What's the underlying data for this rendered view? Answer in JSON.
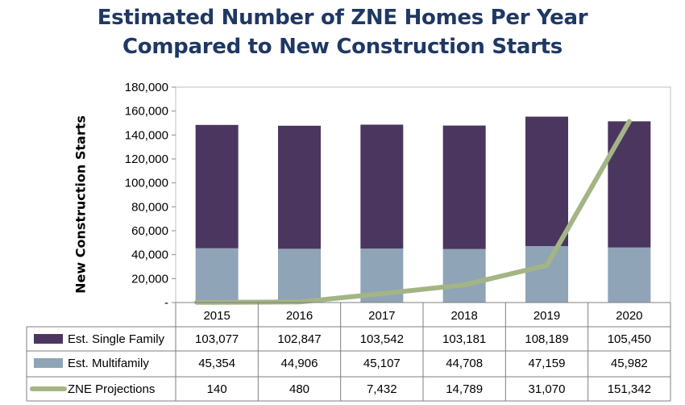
{
  "title_line1": "Estimated Number of ZNE Homes Per Year",
  "title_line2": "Compared to New Construction Starts",
  "colors": {
    "title": "#1f3864",
    "single_family": "#4b3660",
    "multifamily": "#8fa4b6",
    "zne": "#a3b585",
    "grid": "#bfbfbf"
  },
  "chart_data": {
    "type": "bar",
    "stacked": true,
    "categories": [
      "2015",
      "2016",
      "2017",
      "2018",
      "2019",
      "2020"
    ],
    "ylabel": "New Construction Starts",
    "ylim": [
      0,
      180000
    ],
    "yticks": [
      0,
      20000,
      40000,
      60000,
      80000,
      100000,
      120000,
      140000,
      160000,
      180000
    ],
    "ytick_labels": [
      "-",
      "20,000",
      "40,000",
      "60,000",
      "80,000",
      "100,000",
      "120,000",
      "140,000",
      "160,000",
      "180,000"
    ],
    "series": [
      {
        "name": "Est. Single Family",
        "kind": "bar",
        "values": [
          103077,
          102847,
          103542,
          103181,
          108189,
          105450
        ],
        "labels": [
          "103,077",
          "102,847",
          "103,542",
          "103,181",
          "108,189",
          "105,450"
        ]
      },
      {
        "name": "Est. Multifamily",
        "kind": "bar",
        "values": [
          45354,
          44906,
          45107,
          44708,
          47159,
          45982
        ],
        "labels": [
          "45,354",
          "44,906",
          "45,107",
          "44,708",
          "47,159",
          "45,982"
        ]
      },
      {
        "name": "ZNE Projections",
        "kind": "line",
        "values": [
          140,
          480,
          7432,
          14789,
          31070,
          151342
        ],
        "labels": [
          "140",
          "480",
          "7,432",
          "14,789",
          "31,070",
          "151,342"
        ]
      }
    ],
    "grid": false,
    "legend": "data-table"
  }
}
